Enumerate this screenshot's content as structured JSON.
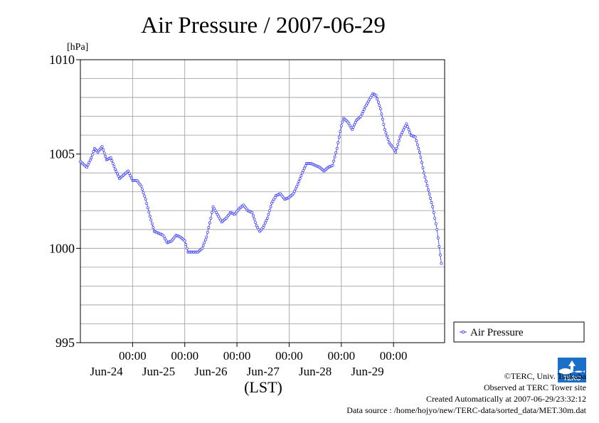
{
  "header": {
    "unit": "[hPa]"
  },
  "chart_data": {
    "type": "line",
    "title": "Air Pressure / 2007-06-29",
    "ylabel": "[hPa]",
    "xlabel": "(LST)",
    "ylim": [
      995,
      1010
    ],
    "y_ticks": [
      "1010",
      "1005",
      "1000",
      "995"
    ],
    "x_ticks": [
      {
        "time": "00:00",
        "date": "Jun-24"
      },
      {
        "time": "00:00",
        "date": "Jun-25"
      },
      {
        "time": "00:00",
        "date": "Jun-26"
      },
      {
        "time": "00:00",
        "date": "Jun-27"
      },
      {
        "time": "00:00",
        "date": "Jun-28"
      },
      {
        "time": "00:00",
        "date": "Jun-29"
      }
    ],
    "xlim": [
      "2007-06-23 00:00",
      "2007-06-29 23:30"
    ],
    "grid": true,
    "legend": {
      "position": "right"
    },
    "series": [
      {
        "name": "Air Pressure",
        "color": "#3333ff",
        "points": [
          [
            "2007-06-23 00:00",
            1004.6
          ],
          [
            "2007-06-23 03:00",
            1004.3
          ],
          [
            "2007-06-23 05:00",
            1004.8
          ],
          [
            "2007-06-23 06:30",
            1005.3
          ],
          [
            "2007-06-23 08:00",
            1005.1
          ],
          [
            "2007-06-23 10:00",
            1005.4
          ],
          [
            "2007-06-23 12:00",
            1004.7
          ],
          [
            "2007-06-23 14:00",
            1004.8
          ],
          [
            "2007-06-23 16:00",
            1004.2
          ],
          [
            "2007-06-23 18:00",
            1003.7
          ],
          [
            "2007-06-23 20:00",
            1003.9
          ],
          [
            "2007-06-23 22:00",
            1004.1
          ],
          [
            "2007-06-24 00:00",
            1003.6
          ],
          [
            "2007-06-24 02:00",
            1003.6
          ],
          [
            "2007-06-24 04:00",
            1003.3
          ],
          [
            "2007-06-24 06:00",
            1002.6
          ],
          [
            "2007-06-24 08:00",
            1001.7
          ],
          [
            "2007-06-24 10:00",
            1000.9
          ],
          [
            "2007-06-24 12:00",
            1000.8
          ],
          [
            "2007-06-24 14:00",
            1000.7
          ],
          [
            "2007-06-24 16:00",
            1000.3
          ],
          [
            "2007-06-24 18:00",
            1000.4
          ],
          [
            "2007-06-24 20:00",
            1000.7
          ],
          [
            "2007-06-24 22:00",
            1000.6
          ],
          [
            "2007-06-25 00:00",
            1000.4
          ],
          [
            "2007-06-25 01:30",
            999.8
          ],
          [
            "2007-06-25 04:00",
            999.8
          ],
          [
            "2007-06-25 06:00",
            999.8
          ],
          [
            "2007-06-25 08:00",
            1000.0
          ],
          [
            "2007-06-25 10:00",
            1000.6
          ],
          [
            "2007-06-25 12:00",
            1001.6
          ],
          [
            "2007-06-25 13:00",
            1002.2
          ],
          [
            "2007-06-25 15:00",
            1001.8
          ],
          [
            "2007-06-25 17:00",
            1001.4
          ],
          [
            "2007-06-25 19:00",
            1001.6
          ],
          [
            "2007-06-25 21:00",
            1001.9
          ],
          [
            "2007-06-25 23:00",
            1001.8
          ],
          [
            "2007-06-26 01:00",
            1002.1
          ],
          [
            "2007-06-26 03:00",
            1002.3
          ],
          [
            "2007-06-26 05:00",
            1002.0
          ],
          [
            "2007-06-26 07:00",
            1001.9
          ],
          [
            "2007-06-26 09:00",
            1001.2
          ],
          [
            "2007-06-26 10:30",
            1000.9
          ],
          [
            "2007-06-26 12:00",
            1001.1
          ],
          [
            "2007-06-26 14:00",
            1001.6
          ],
          [
            "2007-06-26 16:00",
            1002.4
          ],
          [
            "2007-06-26 18:00",
            1002.8
          ],
          [
            "2007-06-26 20:00",
            1002.9
          ],
          [
            "2007-06-26 22:00",
            1002.6
          ],
          [
            "2007-06-27 00:00",
            1002.7
          ],
          [
            "2007-06-27 02:00",
            1002.9
          ],
          [
            "2007-06-27 04:00",
            1003.4
          ],
          [
            "2007-06-27 06:00",
            1004.0
          ],
          [
            "2007-06-27 08:00",
            1004.5
          ],
          [
            "2007-06-27 10:00",
            1004.5
          ],
          [
            "2007-06-27 12:00",
            1004.4
          ],
          [
            "2007-06-27 14:00",
            1004.3
          ],
          [
            "2007-06-27 16:00",
            1004.1
          ],
          [
            "2007-06-27 18:00",
            1004.3
          ],
          [
            "2007-06-27 20:00",
            1004.4
          ],
          [
            "2007-06-27 22:00",
            1005.3
          ],
          [
            "2007-06-28 00:00",
            1006.5
          ],
          [
            "2007-06-28 01:00",
            1006.9
          ],
          [
            "2007-06-28 03:00",
            1006.7
          ],
          [
            "2007-06-28 05:00",
            1006.3
          ],
          [
            "2007-06-28 07:00",
            1006.8
          ],
          [
            "2007-06-28 09:00",
            1007.0
          ],
          [
            "2007-06-28 11:00",
            1007.5
          ],
          [
            "2007-06-28 13:00",
            1007.9
          ],
          [
            "2007-06-28 14:30",
            1008.2
          ],
          [
            "2007-06-28 16:00",
            1008.1
          ],
          [
            "2007-06-28 18:00",
            1007.4
          ],
          [
            "2007-06-28 20:00",
            1006.3
          ],
          [
            "2007-06-28 22:00",
            1005.6
          ],
          [
            "2007-06-29 00:00",
            1005.3
          ],
          [
            "2007-06-29 01:00",
            1005.1
          ],
          [
            "2007-06-29 03:00",
            1005.9
          ],
          [
            "2007-06-29 05:00",
            1006.4
          ],
          [
            "2007-06-29 06:00",
            1006.6
          ],
          [
            "2007-06-29 08:00",
            1006.0
          ],
          [
            "2007-06-29 10:00",
            1005.9
          ],
          [
            "2007-06-29 12:00",
            1005.1
          ],
          [
            "2007-06-29 14:00",
            1004.0
          ],
          [
            "2007-06-29 16:00",
            1003.1
          ],
          [
            "2007-06-29 18:00",
            1002.2
          ],
          [
            "2007-06-29 20:00",
            1001.0
          ],
          [
            "2007-06-29 22:00",
            999.2
          ]
        ]
      }
    ]
  },
  "credits": {
    "copyright": "©TERC, Univ. Tsukuba",
    "observed": "Observed at TERC Tower site",
    "created": "Created Automatically at 2007-06-29/23:32:12",
    "source": "Data source : /home/hojyo/new/TERC-data/sorted_data/MET.30m.dat"
  },
  "logo": {
    "label": "TERC",
    "color": "#1a6fc9"
  }
}
